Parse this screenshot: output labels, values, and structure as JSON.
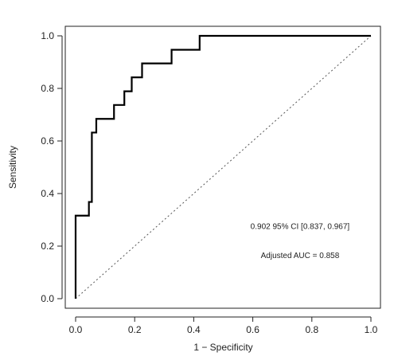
{
  "chart_data": {
    "type": "line",
    "xlabel": "1 − Specificity",
    "ylabel": "Sensitivity",
    "xlim": [
      0.0,
      1.0
    ],
    "ylim": [
      0.0,
      1.0
    ],
    "x_ticks": [
      "0.0",
      "0.2",
      "0.4",
      "0.6",
      "0.8",
      "1.0"
    ],
    "y_ticks": [
      "0.0",
      "0.2",
      "0.4",
      "0.6",
      "0.8",
      "1.0"
    ],
    "grid": false,
    "series": [
      {
        "x": [
          0.0,
          0.0,
          0.045,
          0.045,
          0.055,
          0.055,
          0.07,
          0.07,
          0.13,
          0.13,
          0.165,
          0.165,
          0.19,
          0.19,
          0.225,
          0.225,
          0.325,
          0.325,
          0.42,
          0.42,
          1.0
        ],
        "y": [
          0.0,
          0.316,
          0.316,
          0.368,
          0.368,
          0.632,
          0.632,
          0.684,
          0.684,
          0.737,
          0.737,
          0.789,
          0.789,
          0.842,
          0.842,
          0.895,
          0.895,
          0.947,
          0.947,
          1.0,
          1.0
        ],
        "color": "#000000"
      }
    ],
    "reference_line": {
      "x": [
        0,
        1
      ],
      "y": [
        0,
        1
      ],
      "style": "dotted",
      "color": "#555555"
    },
    "annotations": [
      {
        "text": "0.902 95% CI [0.837, 0.967]",
        "x": 0.76,
        "y": 0.265
      },
      {
        "text": "Adjusted AUC = 0.858",
        "x": 0.76,
        "y": 0.155
      }
    ]
  }
}
